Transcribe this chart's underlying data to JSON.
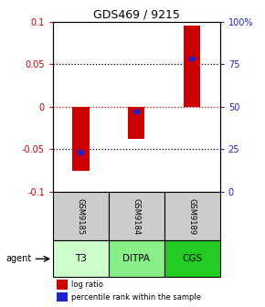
{
  "title": "GDS469 / 9215",
  "samples": [
    "GSM9185",
    "GSM9184",
    "GSM9189"
  ],
  "agents": [
    "T3",
    "DITPA",
    "CGS"
  ],
  "log_ratios": [
    -0.075,
    -0.038,
    0.095
  ],
  "percentile_ranks": [
    0.23,
    0.47,
    0.78
  ],
  "ylim_left": [
    -0.1,
    0.1
  ],
  "yticks_left": [
    -0.1,
    -0.05,
    0,
    0.05,
    0.1
  ],
  "ytick_labels_left": [
    "-0.1",
    "-0.05",
    "0",
    "0.05",
    "0.1"
  ],
  "yticks_right_vals": [
    0.0,
    0.25,
    0.5,
    0.75,
    1.0
  ],
  "ytick_labels_right": [
    "0",
    "25",
    "50",
    "75",
    "100%"
  ],
  "red_color": "#cc0000",
  "blue_color": "#2222cc",
  "zero_line_color": "#cc0000",
  "dot_line_color": "black",
  "agent_colors": [
    "#ccffcc",
    "#88ee88",
    "#22cc22"
  ],
  "sample_bg": "#cccccc",
  "legend_log": "log ratio",
  "legend_pct": "percentile rank within the sample",
  "agent_label": "agent",
  "bar_width": 0.3,
  "blue_bar_height": 0.006,
  "blue_bar_width": 0.12
}
